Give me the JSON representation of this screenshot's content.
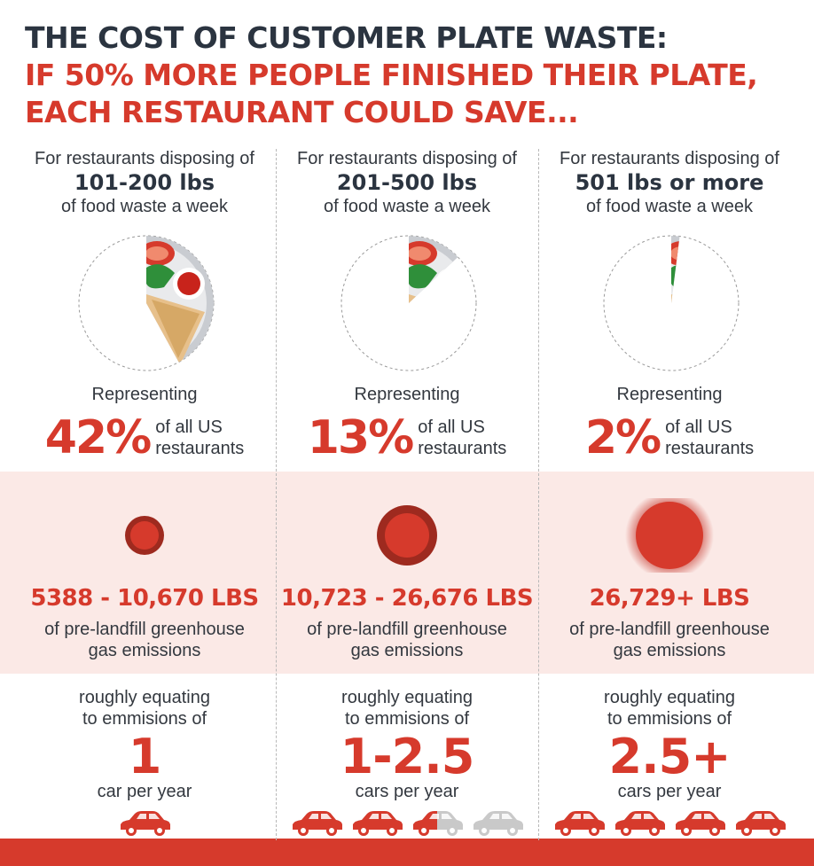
{
  "title": {
    "line1": "THE COST OF CUSTOMER PLATE WASTE:",
    "line2": "IF 50% MORE PEOPLE FINISHED THEIR PLATE,",
    "line3": "EACH RESTAURANT COULD SAVE..."
  },
  "colors": {
    "accent": "#d63a2c",
    "dark": "#2b3440",
    "band": "#fbe9e6",
    "car_inactive": "#c9c9c9"
  },
  "columns": [
    {
      "intro": "For restaurants disposing of",
      "range": "101-200 lbs",
      "intro2": "of food waste a week",
      "share_fraction": 0.42,
      "representing": "Representing",
      "percent": "42%",
      "pct_line1": "of all US",
      "pct_line2": "restaurants",
      "emissions": "5388 - 10,670 LBS",
      "ghg_line1": "of pre-landfill greenhouse",
      "ghg_line2": "gas emissions",
      "rough_line1": "roughly equating",
      "rough_line2": "to emmisions of",
      "cars": "1",
      "cars_label": "car per year",
      "car_icons": [
        1
      ]
    },
    {
      "intro": "For restaurants disposing of",
      "range": "201-500 lbs",
      "intro2": "of food waste a week",
      "share_fraction": 0.13,
      "representing": "Representing",
      "percent": "13%",
      "pct_line1": "of all US",
      "pct_line2": "restaurants",
      "emissions": "10,723 - 26,676 LBS",
      "ghg_line1": "of pre-landfill greenhouse",
      "ghg_line2": "gas emissions",
      "rough_line1": "roughly equating",
      "rough_line2": "to emmisions of",
      "cars": "1-2.5",
      "cars_label": "cars per year",
      "car_icons": [
        1,
        1,
        0.5,
        0
      ]
    },
    {
      "intro": "For restaurants disposing of",
      "range": "501 lbs or more",
      "intro2": "of food waste a week",
      "share_fraction": 0.02,
      "representing": "Representing",
      "percent": "2%",
      "pct_line1": "of all US",
      "pct_line2": "restaurants",
      "emissions": "26,729+ LBS",
      "ghg_line1": "of pre-landfill greenhouse",
      "ghg_line2": "gas emissions",
      "rough_line1": "roughly equating",
      "rough_line2": "to emmisions of",
      "cars": "2.5+",
      "cars_label": "cars per year",
      "car_icons": [
        1,
        1,
        1,
        1
      ]
    }
  ]
}
